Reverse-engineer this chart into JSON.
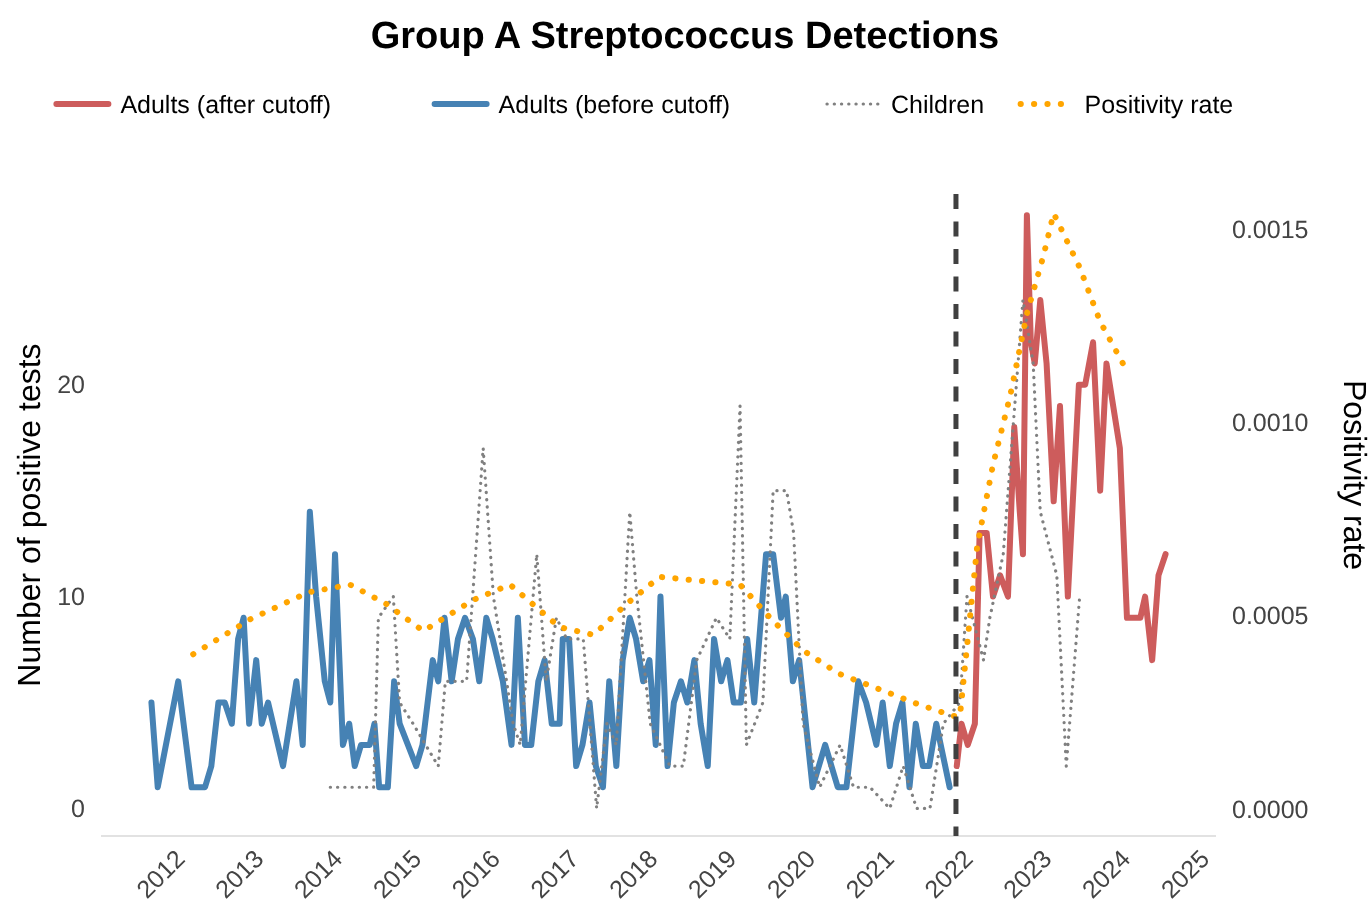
{
  "chart_data": {
    "type": "line",
    "title": "Group A Streptococcus Detections",
    "ylabel": "Number of positive tests",
    "y2label": "Positivity rate",
    "legend": "top",
    "grid": false,
    "xlim": [
      2011.15,
      2025.3
    ],
    "xticks": [
      2012,
      2013,
      2014,
      2015,
      2016,
      2017,
      2018,
      2019,
      2020,
      2021,
      2022,
      2023,
      2024,
      2025
    ],
    "ylim": [
      -1.3,
      29
    ],
    "yticks": [
      0,
      10,
      20
    ],
    "y2lim": [
      -7e-05,
      0.00159
    ],
    "y2ticks": [
      {
        "value": 0,
        "label": "0.0000"
      },
      {
        "value": 0.0005,
        "label": "0.0005"
      },
      {
        "value": 0.001,
        "label": "0.0010"
      },
      {
        "value": 0.0015,
        "label": "0.0015"
      }
    ],
    "ref_lines": [
      {
        "axis": "x",
        "value": 2022,
        "label": null,
        "color": "#404040",
        "line_style": "dashed"
      }
    ],
    "series": [
      {
        "name": "Adults (after cutoff)",
        "color": "#cd5c5c",
        "line_style": "solid",
        "x": [
          2022.01,
          2022.07,
          2022.15,
          2022.24,
          2022.3,
          2022.39,
          2022.47,
          2022.56,
          2022.66,
          2022.74,
          2022.81,
          2022.85,
          2022.9,
          2022.95,
          2023.0,
          2023.07,
          2023.15,
          2023.24,
          2023.32,
          2023.42,
          2023.56,
          2023.64,
          2023.74,
          2023.83,
          2023.91,
          2024.08,
          2024.17,
          2024.34,
          2024.4,
          2024.49,
          2024.57,
          2024.66
        ],
        "values": [
          2,
          4,
          3,
          4,
          13,
          13,
          10,
          11,
          10,
          18,
          14,
          12,
          28,
          22,
          21,
          24,
          21,
          14.5,
          19,
          10,
          20,
          20,
          22,
          15,
          21,
          17,
          9,
          9,
          10,
          7,
          11,
          12
        ]
      },
      {
        "name": "Adults (before cutoff)",
        "color": "#4682b4",
        "line_style": "solid",
        "x": [
          2011.79,
          2011.87,
          2012.13,
          2012.3,
          2012.47,
          2012.55,
          2012.64,
          2012.72,
          2012.81,
          2012.89,
          2012.96,
          2013.03,
          2013.12,
          2013.19,
          2013.27,
          2013.46,
          2013.63,
          2013.71,
          2013.8,
          2013.88,
          2013.99,
          2014.06,
          2014.12,
          2014.22,
          2014.3,
          2014.37,
          2014.45,
          2014.56,
          2014.62,
          2014.68,
          2014.79,
          2014.87,
          2014.94,
          2015.15,
          2015.23,
          2015.36,
          2015.43,
          2015.51,
          2015.6,
          2015.68,
          2015.77,
          2015.87,
          2015.95,
          2016.04,
          2016.12,
          2016.25,
          2016.36,
          2016.44,
          2016.53,
          2016.61,
          2016.7,
          2016.78,
          2016.87,
          2016.97,
          2017.01,
          2017.09,
          2017.18,
          2017.26,
          2017.35,
          2017.43,
          2017.52,
          2017.6,
          2017.69,
          2017.77,
          2017.86,
          2017.94,
          2018.03,
          2018.11,
          2018.19,
          2018.25,
          2018.34,
          2018.42,
          2018.51,
          2018.59,
          2018.68,
          2018.76,
          2018.85,
          2018.93,
          2019.02,
          2019.1,
          2019.18,
          2019.27,
          2019.35,
          2019.44,
          2019.59,
          2019.68,
          2019.78,
          2019.84,
          2019.93,
          2020.01,
          2020.18,
          2020.34,
          2020.42,
          2020.5,
          2020.61,
          2020.76,
          2020.86,
          2020.99,
          2021.07,
          2021.16,
          2021.24,
          2021.32,
          2021.41,
          2021.49,
          2021.58,
          2021.66,
          2021.75,
          2021.92
        ],
        "values": [
          5,
          1,
          6,
          1,
          1,
          2,
          5,
          5,
          4,
          8,
          9,
          4,
          7,
          4,
          5,
          2,
          6,
          3,
          14,
          10,
          6,
          5,
          12,
          3,
          4,
          2,
          3,
          3,
          4,
          1,
          1,
          6,
          4,
          2,
          3,
          7,
          6,
          9,
          6,
          8,
          9,
          8,
          6,
          9,
          8,
          6,
          3,
          9,
          3,
          3,
          6,
          7,
          4,
          4,
          8,
          8,
          2,
          3,
          5,
          2,
          1,
          6,
          2,
          7,
          9,
          8,
          6,
          7,
          3,
          10,
          2,
          5,
          6,
          5,
          7,
          4,
          2,
          8,
          6,
          7,
          5,
          5,
          8,
          5,
          12,
          12,
          9,
          10,
          6,
          7,
          1,
          3,
          2,
          1,
          1,
          6,
          5,
          3,
          5,
          2,
          4,
          5,
          1,
          4,
          2,
          2,
          4,
          1
        ]
      },
      {
        "name": "Children",
        "color": "#808080",
        "line_style": "dotted",
        "x": [
          2014.06,
          2014.27,
          2014.48,
          2014.61,
          2014.67,
          2014.86,
          2014.94,
          2015.11,
          2015.43,
          2015.52,
          2015.79,
          2016.0,
          2016.13,
          2016.38,
          2016.47,
          2016.68,
          2016.8,
          2016.93,
          2017.06,
          2017.27,
          2017.44,
          2017.57,
          2017.69,
          2017.86,
          2017.95,
          2018.12,
          2018.37,
          2018.54,
          2018.71,
          2018.96,
          2019.13,
          2019.26,
          2019.34,
          2019.55,
          2019.68,
          2019.85,
          2019.94,
          2020.06,
          2020.27,
          2020.53,
          2020.7,
          2020.91,
          2021.16,
          2021.33,
          2021.5,
          2021.67,
          2021.84,
          2022.05,
          2022.14,
          2022.35,
          2022.43,
          2022.6,
          2022.85,
          2022.98,
          2023.07,
          2023.28,
          2023.4,
          2023.57
        ],
        "values": [
          1,
          1,
          1,
          1,
          9,
          10,
          5,
          4,
          2,
          6,
          6,
          17,
          10,
          4,
          3,
          12,
          6,
          9,
          8,
          8,
          0,
          4,
          3,
          14,
          10,
          4,
          2,
          2,
          7,
          9,
          8,
          19,
          3,
          5,
          15,
          15,
          13,
          4,
          1,
          3,
          1,
          1,
          0,
          2,
          0,
          0,
          4,
          5,
          10,
          7,
          9,
          12,
          24,
          21,
          14,
          11,
          2,
          10
        ]
      },
      {
        "name": "Positivity rate",
        "color": "#ffa500",
        "line_style": "dotted",
        "axis": "y2",
        "x": [
          2012.32,
          2013.04,
          2013.78,
          2014.31,
          2014.77,
          2015.24,
          2015.87,
          2016.34,
          2016.97,
          2017.4,
          2017.82,
          2018.24,
          2018.75,
          2019.26,
          2019.66,
          2020.06,
          2020.51,
          2021.02,
          2021.53,
          2021.97,
          2022.05,
          2022.27,
          2022.47,
          2022.69,
          2022.9,
          2023.11,
          2023.24,
          2023.57,
          2023.83,
          2024.15
        ],
        "values": [
          0.0004,
          0.00049,
          0.00056,
          0.00058,
          0.00053,
          0.00046,
          0.00054,
          0.00058,
          0.00047,
          0.00045,
          0.00053,
          0.0006,
          0.00059,
          0.00058,
          0.00049,
          0.00041,
          0.00035,
          0.00031,
          0.00027,
          0.00024,
          0.00024,
          0.00068,
          0.00089,
          0.00107,
          0.00128,
          0.00143,
          0.00154,
          0.0014,
          0.00126,
          0.00114
        ]
      }
    ]
  }
}
